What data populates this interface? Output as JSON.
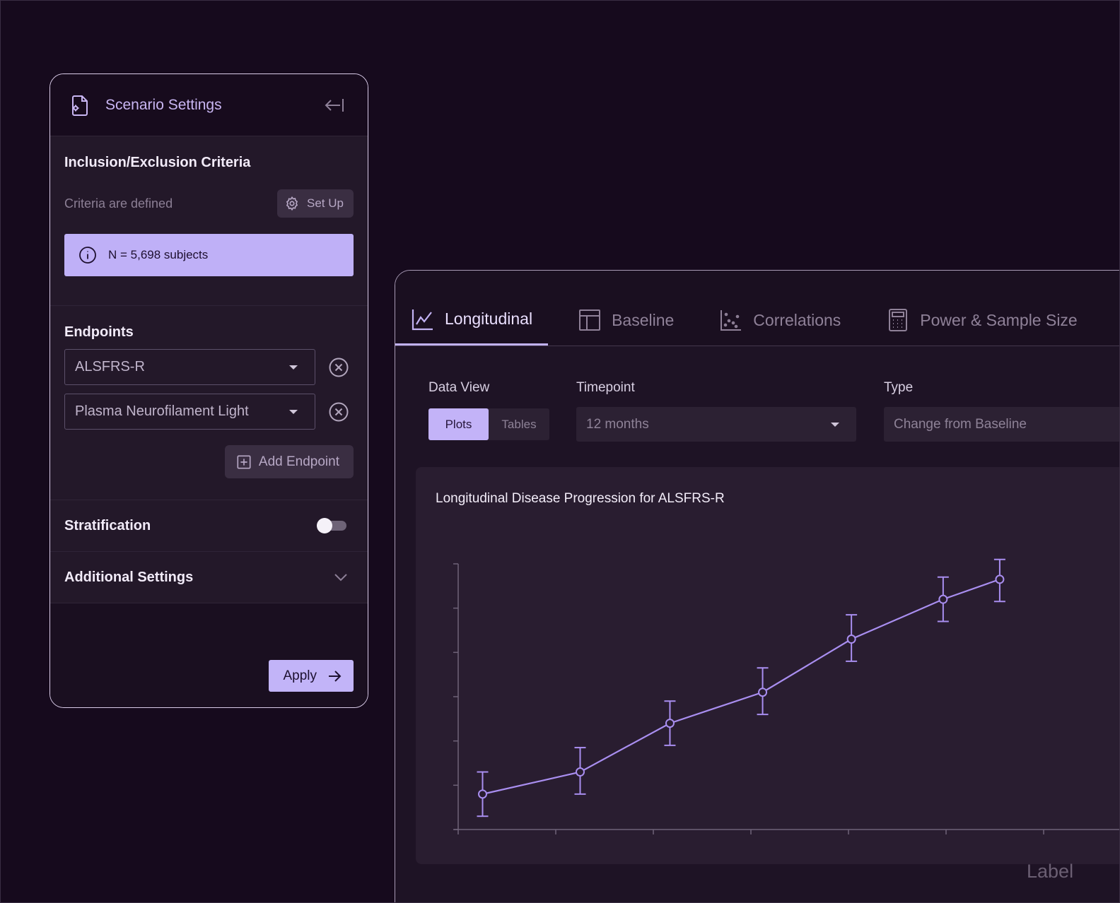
{
  "settings": {
    "title": "Scenario Settings",
    "criteria": {
      "heading": "Inclusion/Exclusion Criteria",
      "status": "Criteria are defined",
      "setup_label": "Set Up",
      "banner_text": "N = 5,698 subjects"
    },
    "endpoints": {
      "heading": "Endpoints",
      "items": [
        {
          "value": "ALSFRS-R"
        },
        {
          "value": "Plasma Neurofilament Light"
        }
      ],
      "add_label": "Add Endpoint"
    },
    "stratification": {
      "label": "Stratification",
      "enabled": false
    },
    "additional": {
      "label": "Additional Settings"
    },
    "apply_label": "Apply"
  },
  "main": {
    "tabs": [
      {
        "label": "Longitudinal",
        "icon": "line-chart-icon",
        "active": true
      },
      {
        "label": "Baseline",
        "icon": "table-icon",
        "active": false
      },
      {
        "label": "Correlations",
        "icon": "scatter-icon",
        "active": false
      },
      {
        "label": "Power & Sample Size",
        "icon": "calculator-icon",
        "active": false
      }
    ],
    "controls": {
      "data_view": {
        "label": "Data View",
        "options": [
          "Plots",
          "Tables"
        ],
        "selected": "Plots"
      },
      "timepoint": {
        "label": "Timepoint",
        "value": "12 months"
      },
      "type": {
        "label": "Type",
        "value": "Change from Baseline"
      }
    }
  },
  "chart_data": {
    "type": "line",
    "title": "Longitudinal Disease Progression for ALSFRS-R",
    "xlabel": "",
    "ylabel": "",
    "x_categories": 6,
    "y_ticks": 7,
    "grid": false,
    "series": [
      {
        "values": [
          0.8,
          1.3,
          2.4,
          3.1,
          4.3,
          5.2,
          5.65
        ],
        "error_low": [
          0.3,
          0.8,
          1.9,
          2.6,
          3.8,
          4.7,
          5.15
        ],
        "error_high": [
          1.3,
          1.85,
          2.9,
          3.65,
          4.85,
          5.7,
          6.1
        ]
      }
    ],
    "x": [
      0.25,
      1.25,
      2.17,
      3.12,
      4.03,
      4.97,
      5.55
    ],
    "xlim": [
      0,
      6
    ],
    "ylim": [
      0,
      6
    ],
    "color": "#a98ef0"
  },
  "corner_label": "Label",
  "colors": {
    "accent": "#c2b4f8",
    "background": "#160a1d"
  }
}
